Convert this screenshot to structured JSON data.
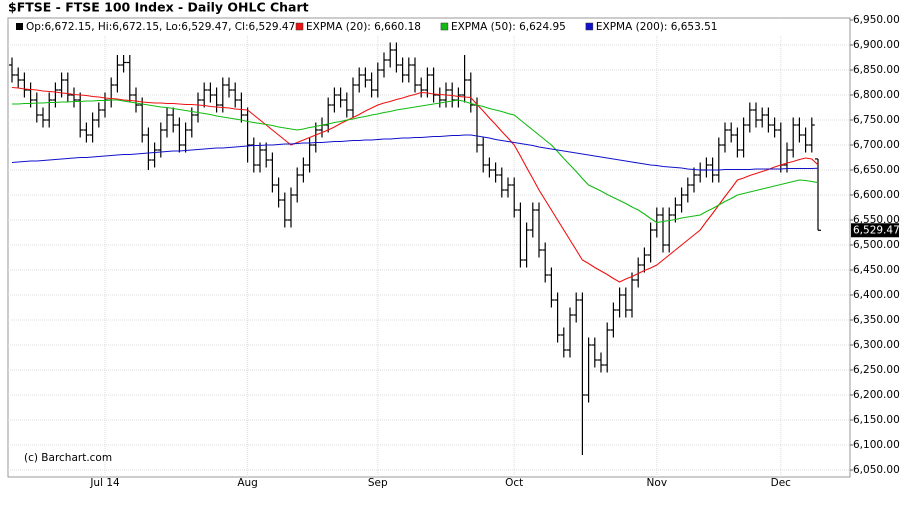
{
  "chart_data": {
    "type": "ohlc",
    "title": "$FTSE - FTSE 100 Index - Daily OHLC Chart",
    "watermark": "(c) Barchart.com",
    "info_label": "Op:6,672.15, Hi:6,672.15, Lo:6,529.47, Cl:6,529.47",
    "last_price_label": "6,529.47",
    "categories": [
      null,
      null,
      null,
      null,
      null,
      null,
      null,
      null,
      null,
      null,
      null,
      null,
      null,
      null,
      null,
      "Jul 14",
      null,
      null,
      null,
      null,
      null,
      null,
      null,
      null,
      null,
      null,
      null,
      null,
      null,
      null,
      null,
      null,
      null,
      null,
      null,
      null,
      null,
      null,
      "Aug",
      null,
      null,
      null,
      null,
      null,
      null,
      null,
      null,
      null,
      null,
      null,
      null,
      null,
      null,
      null,
      null,
      null,
      null,
      null,
      null,
      "Sep",
      null,
      null,
      null,
      null,
      null,
      null,
      null,
      null,
      null,
      null,
      null,
      null,
      null,
      null,
      null,
      null,
      null,
      null,
      null,
      null,
      null,
      "Oct",
      null,
      null,
      null,
      null,
      null,
      null,
      null,
      null,
      null,
      null,
      null,
      null,
      null,
      null,
      null,
      null,
      null,
      null,
      null,
      null,
      null,
      null,
      "Nov",
      null,
      null,
      null,
      null,
      null,
      null,
      null,
      null,
      null,
      null,
      null,
      null,
      null,
      null,
      null,
      null,
      null,
      null,
      null,
      "Dec",
      null,
      null,
      null,
      null,
      null,
      null
    ],
    "ohlc": {
      "color": "#000000",
      "open": [
        6860,
        6840,
        6830,
        6810,
        6790,
        6760,
        6750,
        6790,
        6810,
        6830,
        6800,
        6790,
        6730,
        6720,
        6750,
        6770,
        6790,
        6820,
        6860,
        6865,
        6800,
        6780,
        6720,
        6670,
        6690,
        6730,
        6760,
        6740,
        6700,
        6730,
        6760,
        6790,
        6810,
        6800,
        6780,
        6820,
        6810,
        6790,
        6760,
        6700,
        6660,
        6690,
        6670,
        6620,
        6590,
        6550,
        6600,
        6640,
        6660,
        6700,
        6730,
        6740,
        6780,
        6800,
        6790,
        6770,
        6820,
        6840,
        6830,
        6810,
        6850,
        6870,
        6890,
        6860,
        6840,
        6860,
        6820,
        6810,
        6840,
        6800,
        6790,
        6810,
        6790,
        6800,
        6830,
        6780,
        6700,
        6660,
        6650,
        6640,
        6610,
        6620,
        6570,
        6470,
        6530,
        6570,
        6490,
        6440,
        6390,
        6320,
        6290,
        6360,
        6390,
        6200,
        6300,
        6270,
        6260,
        6330,
        6370,
        6400,
        6370,
        6430,
        6460,
        6480,
        6530,
        6560,
        6500,
        6560,
        6580,
        6600,
        6620,
        6640,
        6650,
        6660,
        6640,
        6700,
        6730,
        6720,
        6690,
        6740,
        6770,
        6750,
        6760,
        6740,
        6730,
        6660,
        6690,
        6740,
        6720,
        6700,
        6672.15
      ],
      "high": [
        6875,
        6855,
        6845,
        6825,
        6805,
        6775,
        6805,
        6825,
        6845,
        6845,
        6815,
        6805,
        6745,
        6765,
        6785,
        6805,
        6835,
        6880,
        6880,
        6880,
        6815,
        6795,
        6735,
        6705,
        6745,
        6775,
        6775,
        6755,
        6745,
        6775,
        6805,
        6825,
        6825,
        6815,
        6835,
        6835,
        6825,
        6805,
        6775,
        6715,
        6705,
        6705,
        6685,
        6635,
        6605,
        6615,
        6655,
        6675,
        6715,
        6745,
        6755,
        6795,
        6815,
        6815,
        6805,
        6835,
        6855,
        6855,
        6845,
        6865,
        6885,
        6905,
        6905,
        6875,
        6875,
        6875,
        6835,
        6855,
        6855,
        6815,
        6825,
        6825,
        6815,
        6880,
        6845,
        6795,
        6715,
        6675,
        6665,
        6655,
        6635,
        6635,
        6585,
        6545,
        6585,
        6585,
        6505,
        6455,
        6405,
        6335,
        6375,
        6405,
        6405,
        6315,
        6315,
        6285,
        6345,
        6385,
        6415,
        6415,
        6445,
        6475,
        6495,
        6545,
        6575,
        6575,
        6575,
        6595,
        6615,
        6635,
        6655,
        6665,
        6675,
        6675,
        6715,
        6745,
        6745,
        6735,
        6755,
        6785,
        6785,
        6775,
        6775,
        6755,
        6745,
        6705,
        6755,
        6755,
        6735,
        6755,
        6672.15
      ],
      "low": [
        6825,
        6815,
        6795,
        6775,
        6745,
        6735,
        6735,
        6775,
        6795,
        6785,
        6775,
        6715,
        6705,
        6705,
        6735,
        6755,
        6775,
        6805,
        6845,
        6785,
        6765,
        6705,
        6650,
        6655,
        6675,
        6715,
        6725,
        6685,
        6685,
        6715,
        6745,
        6775,
        6785,
        6765,
        6765,
        6795,
        6775,
        6745,
        6665,
        6645,
        6645,
        6655,
        6605,
        6575,
        6535,
        6535,
        6585,
        6625,
        6645,
        6685,
        6715,
        6725,
        6765,
        6775,
        6755,
        6755,
        6805,
        6815,
        6795,
        6795,
        6835,
        6855,
        6845,
        6825,
        6825,
        6805,
        6795,
        6795,
        6785,
        6775,
        6775,
        6775,
        6775,
        6785,
        6765,
        6685,
        6645,
        6635,
        6625,
        6595,
        6595,
        6555,
        6455,
        6455,
        6515,
        6475,
        6425,
        6375,
        6305,
        6275,
        6275,
        6345,
        6080,
        6185,
        6255,
        6245,
        6245,
        6315,
        6355,
        6355,
        6355,
        6415,
        6445,
        6465,
        6515,
        6485,
        6485,
        6545,
        6565,
        6585,
        6605,
        6625,
        6635,
        6625,
        6625,
        6685,
        6705,
        6675,
        6675,
        6725,
        6735,
        6735,
        6725,
        6715,
        6645,
        6645,
        6675,
        6705,
        6685,
        6685,
        6529.47
      ],
      "close": [
        6840,
        6830,
        6810,
        6790,
        6760,
        6750,
        6790,
        6810,
        6830,
        6800,
        6790,
        6730,
        6720,
        6750,
        6770,
        6790,
        6820,
        6860,
        6865,
        6800,
        6780,
        6720,
        6670,
        6690,
        6730,
        6760,
        6740,
        6700,
        6730,
        6760,
        6790,
        6810,
        6800,
        6780,
        6820,
        6810,
        6790,
        6760,
        6700,
        6660,
        6690,
        6670,
        6620,
        6590,
        6550,
        6600,
        6640,
        6660,
        6700,
        6730,
        6740,
        6780,
        6800,
        6790,
        6770,
        6820,
        6840,
        6830,
        6810,
        6850,
        6870,
        6890,
        6860,
        6840,
        6860,
        6820,
        6810,
        6840,
        6800,
        6790,
        6810,
        6790,
        6800,
        6830,
        6780,
        6700,
        6660,
        6650,
        6640,
        6610,
        6620,
        6570,
        6470,
        6530,
        6570,
        6490,
        6440,
        6390,
        6320,
        6290,
        6360,
        6390,
        6200,
        6300,
        6270,
        6260,
        6330,
        6370,
        6400,
        6370,
        6430,
        6460,
        6480,
        6530,
        6560,
        6500,
        6560,
        6580,
        6600,
        6620,
        6640,
        6650,
        6660,
        6640,
        6700,
        6730,
        6720,
        6690,
        6740,
        6770,
        6750,
        6760,
        6740,
        6730,
        6660,
        6690,
        6740,
        6720,
        6700,
        6740,
        6529.47
      ]
    },
    "series": [
      {
        "name": "EXPMA (20): 6,660.18",
        "color": "#ee1111",
        "values": [
          6815,
          6814,
          6812,
          6811,
          6810,
          6808,
          6807,
          6806,
          6804,
          6803,
          6801,
          6800,
          6799,
          6797,
          6796,
          6794,
          6793,
          6792,
          6790,
          6789,
          6788,
          6786,
          6785,
          6784,
          6784,
          6783,
          6783,
          6782,
          6781,
          6781,
          6780,
          6779,
          6777,
          6776,
          6775,
          6774,
          6772,
          6771,
          6770,
          6760,
          6750,
          6740,
          6730,
          6720,
          6710,
          6700,
          6705,
          6710,
          6715,
          6720,
          6725,
          6730,
          6736,
          6743,
          6749,
          6755,
          6761,
          6768,
          6774,
          6780,
          6784,
          6787,
          6791,
          6794,
          6798,
          6801,
          6805,
          6804,
          6802,
          6801,
          6800,
          6799,
          6797,
          6796,
          6795,
          6781,
          6768,
          6754,
          6741,
          6727,
          6714,
          6700,
          6678,
          6655,
          6633,
          6610,
          6590,
          6570,
          6550,
          6530,
          6510,
          6490,
          6470,
          6463,
          6455,
          6448,
          6441,
          6433,
          6426,
          6432,
          6437,
          6443,
          6449,
          6454,
          6460,
          6470,
          6480,
          6490,
          6500,
          6510,
          6520,
          6530,
          6547,
          6563,
          6580,
          6597,
          6613,
          6630,
          6634,
          6639,
          6643,
          6647,
          6651,
          6656,
          6660,
          6664,
          6667,
          6671,
          6674,
          6672,
          6660.18
        ]
      },
      {
        "name": "EXPMA (50): 6,624.95",
        "color": "#11bb11",
        "values": [
          6782,
          6782,
          6783,
          6783,
          6784,
          6784,
          6785,
          6785,
          6786,
          6786,
          6787,
          6787,
          6788,
          6788,
          6789,
          6789,
          6790,
          6790,
          6788,
          6786,
          6784,
          6782,
          6780,
          6778,
          6776,
          6775,
          6773,
          6771,
          6769,
          6767,
          6765,
          6763,
          6761,
          6758,
          6756,
          6754,
          6752,
          6750,
          6747,
          6745,
          6743,
          6741,
          6739,
          6736,
          6734,
          6732,
          6730,
          6732,
          6735,
          6737,
          6740,
          6742,
          6745,
          6747,
          6750,
          6752,
          6755,
          6757,
          6760,
          6762,
          6765,
          6767,
          6770,
          6772,
          6774,
          6776,
          6778,
          6780,
          6782,
          6784,
          6786,
          6788,
          6790,
          6787,
          6783,
          6780,
          6777,
          6773,
          6770,
          6767,
          6763,
          6760,
          6750,
          6740,
          6730,
          6720,
          6710,
          6700,
          6687,
          6673,
          6660,
          6647,
          6633,
          6620,
          6614,
          6608,
          6601,
          6595,
          6589,
          6583,
          6576,
          6570,
          6562,
          6553,
          6545,
          6547,
          6549,
          6551,
          6554,
          6556,
          6558,
          6560,
          6567,
          6573,
          6580,
          6587,
          6593,
          6600,
          6603,
          6606,
          6609,
          6612,
          6615,
          6618,
          6621,
          6624,
          6627,
          6630,
          6629,
          6627,
          6624.95
        ]
      },
      {
        "name": "EXPMA (200): 6,653.51",
        "color": "#1111cc",
        "values": [
          6665,
          6666,
          6667,
          6668,
          6668,
          6669,
          6670,
          6671,
          6672,
          6673,
          6674,
          6675,
          6675,
          6676,
          6677,
          6678,
          6679,
          6680,
          6681,
          6681,
          6682,
          6683,
          6684,
          6685,
          6686,
          6687,
          6688,
          6688,
          6689,
          6690,
          6691,
          6692,
          6693,
          6694,
          6694,
          6695,
          6696,
          6697,
          6698,
          6699,
          6699,
          6700,
          6700,
          6701,
          6702,
          6702,
          6703,
          6704,
          6704,
          6705,
          6705,
          6706,
          6707,
          6707,
          6708,
          6709,
          6709,
          6710,
          6710,
          6711,
          6712,
          6712,
          6713,
          6714,
          6714,
          6715,
          6715,
          6716,
          6717,
          6717,
          6718,
          6719,
          6719,
          6720,
          6720,
          6718,
          6716,
          6714,
          6711,
          6709,
          6707,
          6705,
          6703,
          6701,
          6699,
          6696,
          6694,
          6692,
          6690,
          6688,
          6686,
          6684,
          6682,
          6680,
          6678,
          6676,
          6674,
          6672,
          6670,
          6668,
          6666,
          6664,
          6662,
          6660,
          6659,
          6657,
          6656,
          6655,
          6654,
          6652,
          6651,
          6650,
          6650,
          6650,
          6650,
          6651,
          6651,
          6651,
          6651,
          6651,
          6652,
          6652,
          6652,
          6652,
          6652,
          6653,
          6653,
          6653,
          6653,
          6653,
          6653.51
        ]
      }
    ],
    "ylim": [
      6036,
      6954
    ],
    "yticks": [
      {
        "value": 6050,
        "label": "6,050.00"
      },
      {
        "value": 6100,
        "label": "6,100.00"
      },
      {
        "value": 6150,
        "label": "6,150.00"
      },
      {
        "value": 6200,
        "label": "6,200.00"
      },
      {
        "value": 6250,
        "label": "6,250.00"
      },
      {
        "value": 6300,
        "label": "6,300.00"
      },
      {
        "value": 6350,
        "label": "6,350.00"
      },
      {
        "value": 6400,
        "label": "6,400.00"
      },
      {
        "value": 6450,
        "label": "6,450.00"
      },
      {
        "value": 6500,
        "label": "6,500.00"
      },
      {
        "value": 6550,
        "label": "6,550.00"
      },
      {
        "value": 6600,
        "label": "6,600.00"
      },
      {
        "value": 6650,
        "label": "6,650.00"
      },
      {
        "value": 6700,
        "label": "6,700.00"
      },
      {
        "value": 6750,
        "label": "6,750.00"
      },
      {
        "value": 6800,
        "label": "6,800.00"
      },
      {
        "value": 6850,
        "label": "6,850.00"
      },
      {
        "value": 6900,
        "label": "6,900.00"
      },
      {
        "value": 6950,
        "label": "6,950.00"
      }
    ],
    "grid": true
  }
}
